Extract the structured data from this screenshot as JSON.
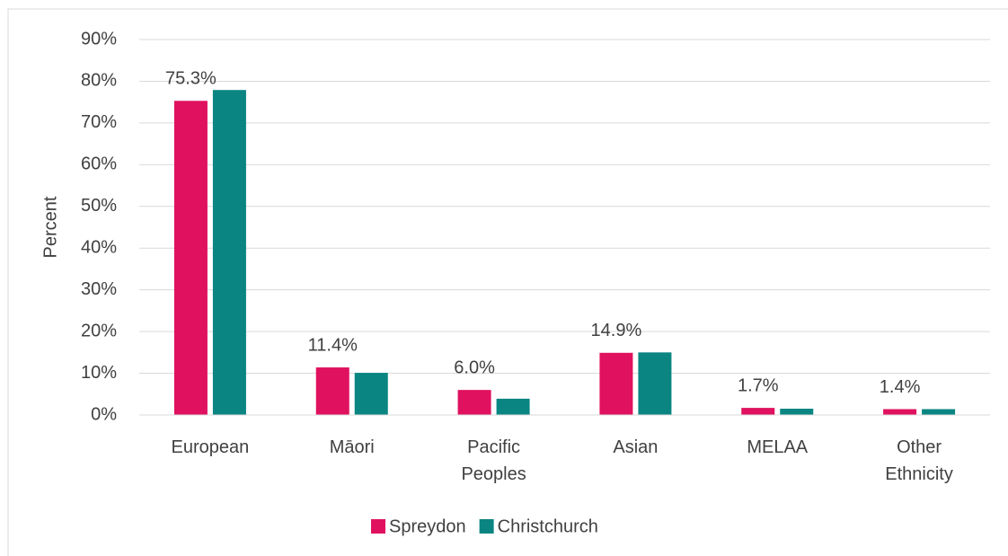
{
  "chart_data": {
    "type": "bar",
    "y_label": "Percent",
    "categories": [
      "European",
      "Māori",
      "Pacific Peoples",
      "Asian",
      "MELAA",
      "Other Ethnicity"
    ],
    "series": [
      {
        "name": "Spreydon",
        "color": "#e0115f",
        "values": [
          75.3,
          11.4,
          6.0,
          14.9,
          1.7,
          1.4
        ],
        "value_labels": [
          "75.3%",
          "11.4%",
          "6.0%",
          "14.9%",
          "1.7%",
          "1.4%"
        ]
      },
      {
        "name": "Christchurch",
        "color": "#0a8582",
        "values": [
          77.9,
          10.1,
          3.9,
          15.0,
          1.5,
          1.4
        ]
      }
    ],
    "ylim": [
      0,
      90
    ],
    "yticks": [
      {
        "value": 0,
        "label": "0%"
      },
      {
        "value": 10,
        "label": "10%"
      },
      {
        "value": 20,
        "label": "20%"
      },
      {
        "value": 30,
        "label": "30%"
      },
      {
        "value": 40,
        "label": "40%"
      },
      {
        "value": 50,
        "label": "50%"
      },
      {
        "value": 60,
        "label": "60%"
      },
      {
        "value": 70,
        "label": "70%"
      },
      {
        "value": 80,
        "label": "80%"
      },
      {
        "value": 90,
        "label": "90%"
      }
    ],
    "grid": true,
    "legend": "bottom"
  }
}
